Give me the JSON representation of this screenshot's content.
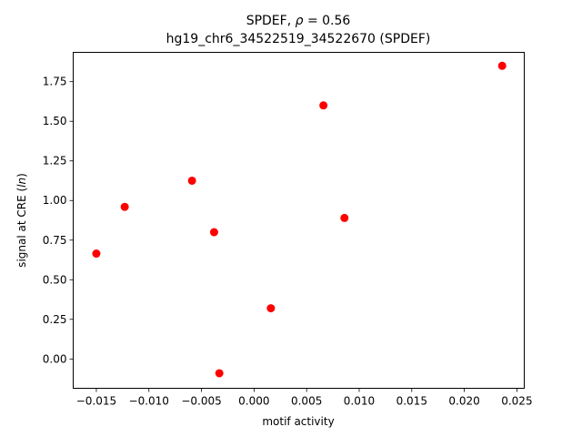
{
  "chart_data": {
    "type": "scatter",
    "title_prefix": "SPDEF, ",
    "title_rho_symbol": "ρ",
    "title_rho_value": " = 0.56",
    "subtitle": "hg19_chr6_34522519_34522670 (SPDEF)",
    "xlabel": "motif activity",
    "ylabel_prefix": "signal at CRE (",
    "ylabel_italic": "ln",
    "ylabel_suffix": ")",
    "xlim": [
      -0.0172,
      0.0257
    ],
    "ylim": [
      -0.185,
      1.935
    ],
    "grid": false,
    "marker_color": "#ff0000",
    "x_ticks": [
      -0.015,
      -0.01,
      -0.005,
      0.0,
      0.005,
      0.01,
      0.015,
      0.02,
      0.025
    ],
    "x_tick_labels": [
      "−0.015",
      "−0.010",
      "−0.005",
      "0.000",
      "0.005",
      "0.010",
      "0.015",
      "0.020",
      "0.025"
    ],
    "y_ticks": [
      0.0,
      0.25,
      0.5,
      0.75,
      1.0,
      1.25,
      1.5,
      1.75
    ],
    "y_tick_labels": [
      "0.00",
      "0.25",
      "0.50",
      "0.75",
      "1.00",
      "1.25",
      "1.50",
      "1.75"
    ],
    "points": [
      {
        "x": -0.015,
        "y": 0.665
      },
      {
        "x": -0.0123,
        "y": 0.96
      },
      {
        "x": -0.0059,
        "y": 1.125
      },
      {
        "x": -0.0038,
        "y": 0.8
      },
      {
        "x": -0.0033,
        "y": -0.09
      },
      {
        "x": 0.0016,
        "y": 0.32
      },
      {
        "x": 0.0066,
        "y": 1.6
      },
      {
        "x": 0.0086,
        "y": 0.89
      },
      {
        "x": 0.0236,
        "y": 1.85
      }
    ]
  }
}
